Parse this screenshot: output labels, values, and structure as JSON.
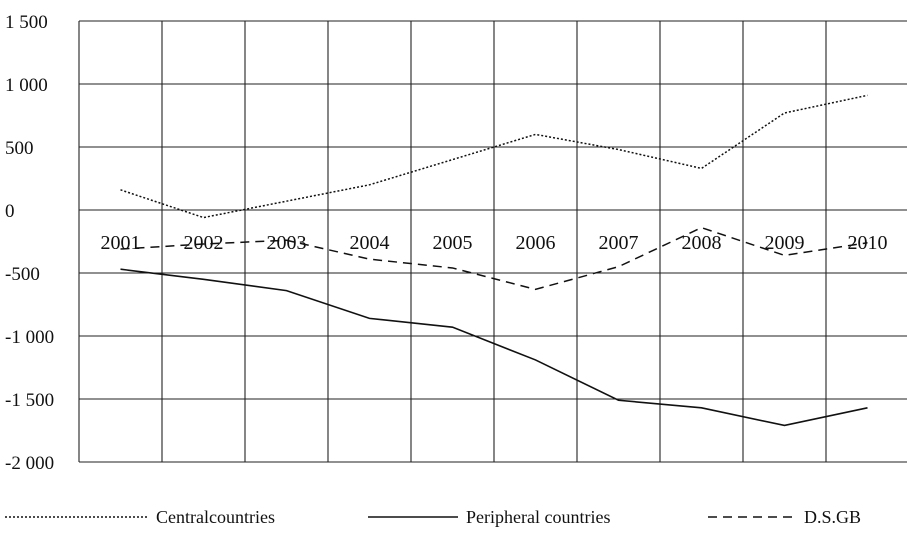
{
  "chart_data": {
    "type": "line",
    "categories": [
      "2001",
      "2002",
      "2003",
      "2004",
      "2005",
      "2006",
      "2007",
      "2008",
      "2009",
      "2010"
    ],
    "series": [
      {
        "name": "Centralcountries",
        "style": "dotted",
        "color": "#111111",
        "values": [
          160,
          -60,
          70,
          200,
          400,
          600,
          480,
          330,
          770,
          910
        ]
      },
      {
        "name": "Peripheral countries",
        "style": "solid",
        "color": "#111111",
        "values": [
          -470,
          -550,
          -640,
          -860,
          -930,
          -1190,
          -1510,
          -1570,
          -1710,
          -1570
        ]
      },
      {
        "name": "D.S.GB",
        "style": "dashed",
        "color": "#111111",
        "values": [
          -310,
          -270,
          -240,
          -390,
          -460,
          -630,
          -450,
          -140,
          -360,
          -260
        ]
      }
    ],
    "ylim": [
      -2000,
      1500
    ],
    "yticks": [
      -2000,
      -1500,
      -1000,
      -500,
      0,
      500,
      1000,
      1500
    ],
    "ytick_labels": [
      "-2 000",
      "-1 500",
      "-1 000",
      "-500",
      "0",
      "500",
      "1 000",
      "1 500"
    ],
    "grid": true,
    "legend_position": "bottom",
    "title": "",
    "xlabel": "",
    "ylabel": ""
  }
}
